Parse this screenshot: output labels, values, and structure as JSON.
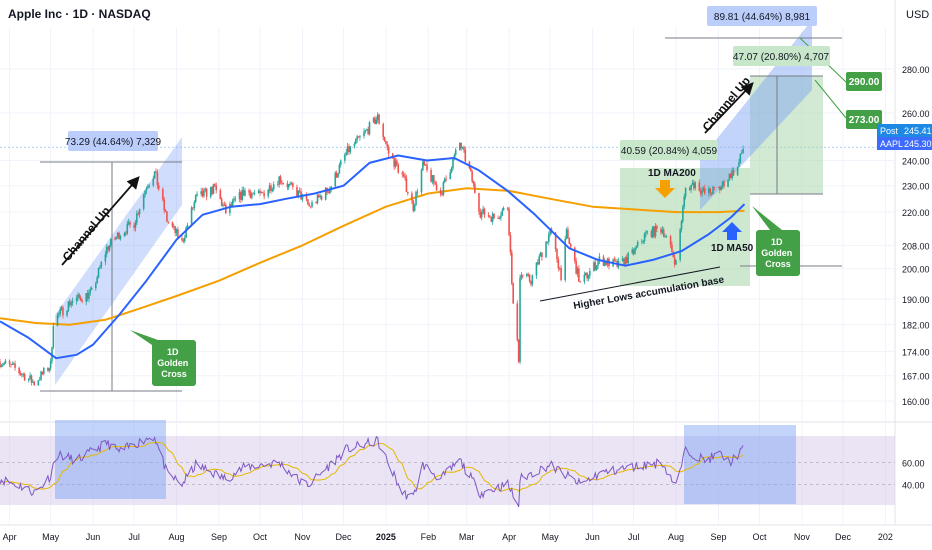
{
  "header": {
    "title": "Apple Inc · 1D · NASDAQ",
    "currency": "USD"
  },
  "colors": {
    "bull": "#26a69a",
    "bear": "#ef5350",
    "ma50": "#2962ff",
    "ma200": "#f59f00",
    "rsi": "#7e57c2",
    "rsi_ma": "#e6b800",
    "green_label": "#43a047",
    "post_badge": "#1e88e5",
    "aapl_badge": "#3d6bff"
  },
  "chart_data": {
    "type": "line",
    "title": "Apple Inc · 1D · NASDAQ",
    "xlabel": "",
    "ylabel": "USD",
    "x_range": [
      "2024-03-25",
      "2026-01-08"
    ],
    "y_range": [
      155,
      300
    ],
    "log_scale": true,
    "x_ticks": [
      {
        "label": "Apr",
        "date": "2024-04-01"
      },
      {
        "label": "May",
        "date": "2024-05-01"
      },
      {
        "label": "Jun",
        "date": "2024-06-01"
      },
      {
        "label": "Jul",
        "date": "2024-07-01"
      },
      {
        "label": "Aug",
        "date": "2024-08-01"
      },
      {
        "label": "Sep",
        "date": "2024-09-01"
      },
      {
        "label": "Oct",
        "date": "2024-10-01"
      },
      {
        "label": "Nov",
        "date": "2024-11-01"
      },
      {
        "label": "Dec",
        "date": "2024-12-01"
      },
      {
        "label": "2025",
        "date": "2025-01-01"
      },
      {
        "label": "Feb",
        "date": "2025-02-01"
      },
      {
        "label": "Mar",
        "date": "2025-03-01"
      },
      {
        "label": "Apr",
        "date": "2025-04-01"
      },
      {
        "label": "May",
        "date": "2025-05-01"
      },
      {
        "label": "Jun",
        "date": "2025-06-01"
      },
      {
        "label": "Jul",
        "date": "2025-07-01"
      },
      {
        "label": "Aug",
        "date": "2025-08-01"
      },
      {
        "label": "Sep",
        "date": "2025-09-01"
      },
      {
        "label": "Oct",
        "date": "2025-10-01"
      },
      {
        "label": "Nov",
        "date": "2025-11-01"
      },
      {
        "label": "Dec",
        "date": "2025-12-01"
      },
      {
        "label": "202",
        "date": "2026-01-01"
      }
    ],
    "y_ticks": [
      280,
      260,
      240,
      230,
      220,
      208,
      200,
      190,
      182,
      174,
      167,
      160
    ],
    "price_path": [
      [
        "2024-03-25",
        171
      ],
      [
        "2024-04-05",
        169
      ],
      [
        "2024-04-19",
        165
      ],
      [
        "2024-05-01",
        170
      ],
      [
        "2024-05-03",
        183
      ],
      [
        "2024-05-15",
        189
      ],
      [
        "2024-05-31",
        192
      ],
      [
        "2024-06-11",
        207
      ],
      [
        "2024-06-20",
        212
      ],
      [
        "2024-07-01",
        216
      ],
      [
        "2024-07-10",
        230
      ],
      [
        "2024-07-16",
        235
      ],
      [
        "2024-07-25",
        217
      ],
      [
        "2024-08-05",
        209
      ],
      [
        "2024-08-15",
        225
      ],
      [
        "2024-08-29",
        229
      ],
      [
        "2024-09-06",
        220
      ],
      [
        "2024-09-20",
        228
      ],
      [
        "2024-10-01",
        226
      ],
      [
        "2024-10-15",
        233
      ],
      [
        "2024-10-31",
        226
      ],
      [
        "2024-11-06",
        222
      ],
      [
        "2024-11-21",
        229
      ],
      [
        "2024-12-03",
        243
      ],
      [
        "2024-12-16",
        251
      ],
      [
        "2024-12-26",
        258
      ],
      [
        "2025-01-03",
        243
      ],
      [
        "2025-01-13",
        234
      ],
      [
        "2025-01-21",
        222
      ],
      [
        "2025-01-28",
        238
      ],
      [
        "2025-02-10",
        227
      ],
      [
        "2025-02-24",
        247
      ],
      [
        "2025-03-03",
        236
      ],
      [
        "2025-03-11",
        220
      ],
      [
        "2025-03-21",
        218
      ],
      [
        "2025-03-31",
        222
      ],
      [
        "2025-04-04",
        188
      ],
      [
        "2025-04-08",
        172
      ],
      [
        "2025-04-09",
        198
      ],
      [
        "2025-04-17",
        196
      ],
      [
        "2025-05-01",
        213
      ],
      [
        "2025-05-09",
        198
      ],
      [
        "2025-05-13",
        212
      ],
      [
        "2025-05-23",
        195
      ],
      [
        "2025-06-06",
        203
      ],
      [
        "2025-06-20",
        201
      ],
      [
        "2025-06-30",
        205
      ],
      [
        "2025-07-10",
        212
      ],
      [
        "2025-07-22",
        214
      ],
      [
        "2025-08-01",
        202
      ],
      [
        "2025-08-08",
        229
      ],
      [
        "2025-08-15",
        231
      ],
      [
        "2025-08-22",
        227
      ],
      [
        "2025-09-02",
        229
      ],
      [
        "2025-09-09",
        234
      ],
      [
        "2025-09-15",
        237
      ],
      [
        "2025-09-19",
        245
      ]
    ],
    "ma50": [
      [
        "2024-03-25",
        183
      ],
      [
        "2024-04-15",
        178
      ],
      [
        "2024-05-05",
        172
      ],
      [
        "2024-05-20",
        173
      ],
      [
        "2024-06-01",
        176
      ],
      [
        "2024-06-20",
        185
      ],
      [
        "2024-07-10",
        196
      ],
      [
        "2024-08-01",
        210
      ],
      [
        "2024-08-20",
        219
      ],
      [
        "2024-09-10",
        222
      ],
      [
        "2024-10-01",
        223
      ],
      [
        "2024-10-20",
        225
      ],
      [
        "2024-11-10",
        227
      ],
      [
        "2024-12-01",
        230
      ],
      [
        "2024-12-20",
        239
      ],
      [
        "2025-01-10",
        242
      ],
      [
        "2025-01-31",
        240
      ],
      [
        "2025-02-20",
        241
      ],
      [
        "2025-03-10",
        236
      ],
      [
        "2025-03-31",
        228
      ],
      [
        "2025-04-20",
        219
      ],
      [
        "2025-05-15",
        207
      ],
      [
        "2025-06-05",
        203
      ],
      [
        "2025-06-25",
        201
      ],
      [
        "2025-07-15",
        203
      ],
      [
        "2025-08-05",
        206
      ],
      [
        "2025-08-25",
        212
      ],
      [
        "2025-09-10",
        218
      ],
      [
        "2025-09-20",
        223
      ]
    ],
    "ma200": [
      [
        "2024-03-25",
        184
      ],
      [
        "2024-04-20",
        182.5
      ],
      [
        "2024-05-15",
        182
      ],
      [
        "2024-06-10",
        183.5
      ],
      [
        "2024-07-05",
        187
      ],
      [
        "2024-08-01",
        191
      ],
      [
        "2024-09-01",
        196
      ],
      [
        "2024-10-01",
        202
      ],
      [
        "2024-11-01",
        208
      ],
      [
        "2024-12-01",
        215
      ],
      [
        "2025-01-01",
        222
      ],
      [
        "2025-02-01",
        227
      ],
      [
        "2025-03-01",
        229
      ],
      [
        "2025-04-01",
        228
      ],
      [
        "2025-05-01",
        225
      ],
      [
        "2025-06-01",
        222
      ],
      [
        "2025-07-01",
        221
      ],
      [
        "2025-08-01",
        220
      ],
      [
        "2025-09-01",
        220
      ],
      [
        "2025-09-20",
        220.5
      ]
    ],
    "rsi": [
      [
        "2024-03-25",
        45
      ],
      [
        "2024-04-10",
        38
      ],
      [
        "2024-04-20",
        32
      ],
      [
        "2024-05-01",
        48
      ],
      [
        "2024-05-05",
        68
      ],
      [
        "2024-05-20",
        62
      ],
      [
        "2024-06-11",
        78
      ],
      [
        "2024-06-20",
        70
      ],
      [
        "2024-07-10",
        82
      ],
      [
        "2024-07-16",
        84
      ],
      [
        "2024-07-25",
        50
      ],
      [
        "2024-08-05",
        40
      ],
      [
        "2024-08-15",
        58
      ],
      [
        "2024-09-06",
        45
      ],
      [
        "2024-09-20",
        56
      ],
      [
        "2024-10-15",
        60
      ],
      [
        "2024-10-31",
        42
      ],
      [
        "2024-11-06",
        40
      ],
      [
        "2024-12-03",
        72
      ],
      [
        "2024-12-26",
        80
      ],
      [
        "2025-01-13",
        32
      ],
      [
        "2025-01-21",
        28
      ],
      [
        "2025-01-28",
        58
      ],
      [
        "2025-02-10",
        45
      ],
      [
        "2025-02-24",
        62
      ],
      [
        "2025-03-11",
        32
      ],
      [
        "2025-03-31",
        40
      ],
      [
        "2025-04-08",
        20
      ],
      [
        "2025-04-09",
        45
      ],
      [
        "2025-05-01",
        58
      ],
      [
        "2025-05-23",
        40
      ],
      [
        "2025-06-06",
        50
      ],
      [
        "2025-06-30",
        56
      ],
      [
        "2025-07-22",
        60
      ],
      [
        "2025-08-01",
        38
      ],
      [
        "2025-08-08",
        72
      ],
      [
        "2025-08-22",
        62
      ],
      [
        "2025-09-02",
        68
      ],
      [
        "2025-09-09",
        60
      ],
      [
        "2025-09-19",
        72
      ]
    ],
    "rsi_ticks": [
      60.0,
      40.0
    ],
    "last_post": 245.41,
    "last_aapl": 245.3,
    "annotations": {
      "measure_2024": "73.29 (44.64%) 7,329",
      "measure_2025_a": "40.59 (20.84%) 4,059",
      "measure_2025_b": "47.07 (20.80%) 4,707",
      "measure_2025_c": "89.81 (44.64%) 8,981",
      "channel_up_1": "Channel Up",
      "channel_up_2": "Channel Up",
      "golden_cross_1": "1D\nGolden\nCross",
      "golden_cross_2": "1D\nGolden\nCross",
      "ma200_label": "1D MA200",
      "ma50_label": "1D MA50",
      "higher_lows": "Higher Lows accumulation base",
      "target_1": "290.00",
      "target_2": "273.00",
      "post_label": "Post",
      "aapl_label": "AAPL"
    }
  }
}
